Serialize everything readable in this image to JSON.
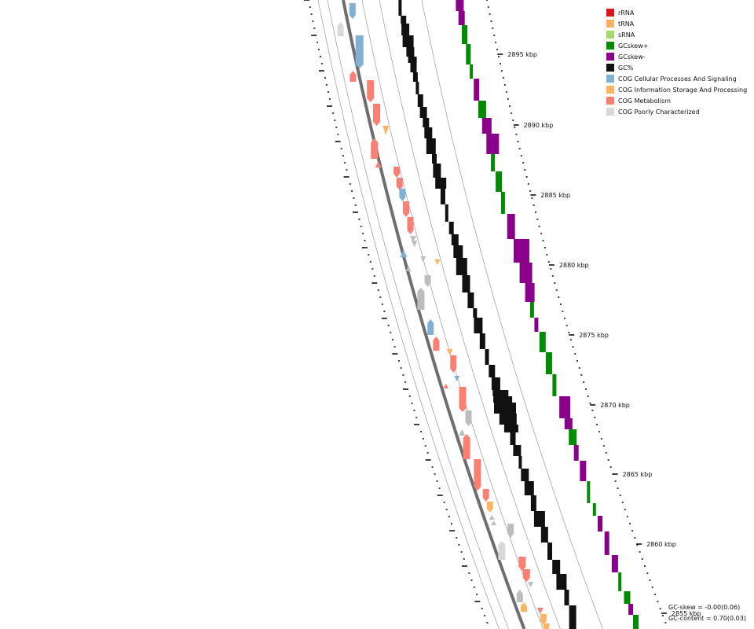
{
  "legend": [
    {
      "label": "rRNA",
      "color": "#d7191c"
    },
    {
      "label": "tRNA",
      "color": "#fdae61"
    },
    {
      "label": "sRNA",
      "color": "#a6d96a"
    },
    {
      "label": "GCskew+",
      "color": "#008b00"
    },
    {
      "label": "GCskew-",
      "color": "#8b008b"
    },
    {
      "label": "GC%",
      "color": "#111111"
    },
    {
      "label": "COG Cellular Processes And Signaling",
      "color": "#80b1d3"
    },
    {
      "label": "COG Information Storage And Processing",
      "color": "#fdb462"
    },
    {
      "label": "COG Metabolism",
      "color": "#fb8072"
    },
    {
      "label": "COG Poorly Characterized",
      "color": "#d9d9d9"
    }
  ],
  "ticks": [
    "2895 kbp",
    "2890 kbp",
    "2885 kbp",
    "2880 kbp",
    "2875 kbp",
    "2870 kbp",
    "2865 kbp",
    "2860 kbp",
    "2855 kbp"
  ],
  "stats": {
    "gc_skew": "GC-skew = -0.00(0.06)",
    "gc_content": "GC-content = 0.70(0.03)"
  }
}
